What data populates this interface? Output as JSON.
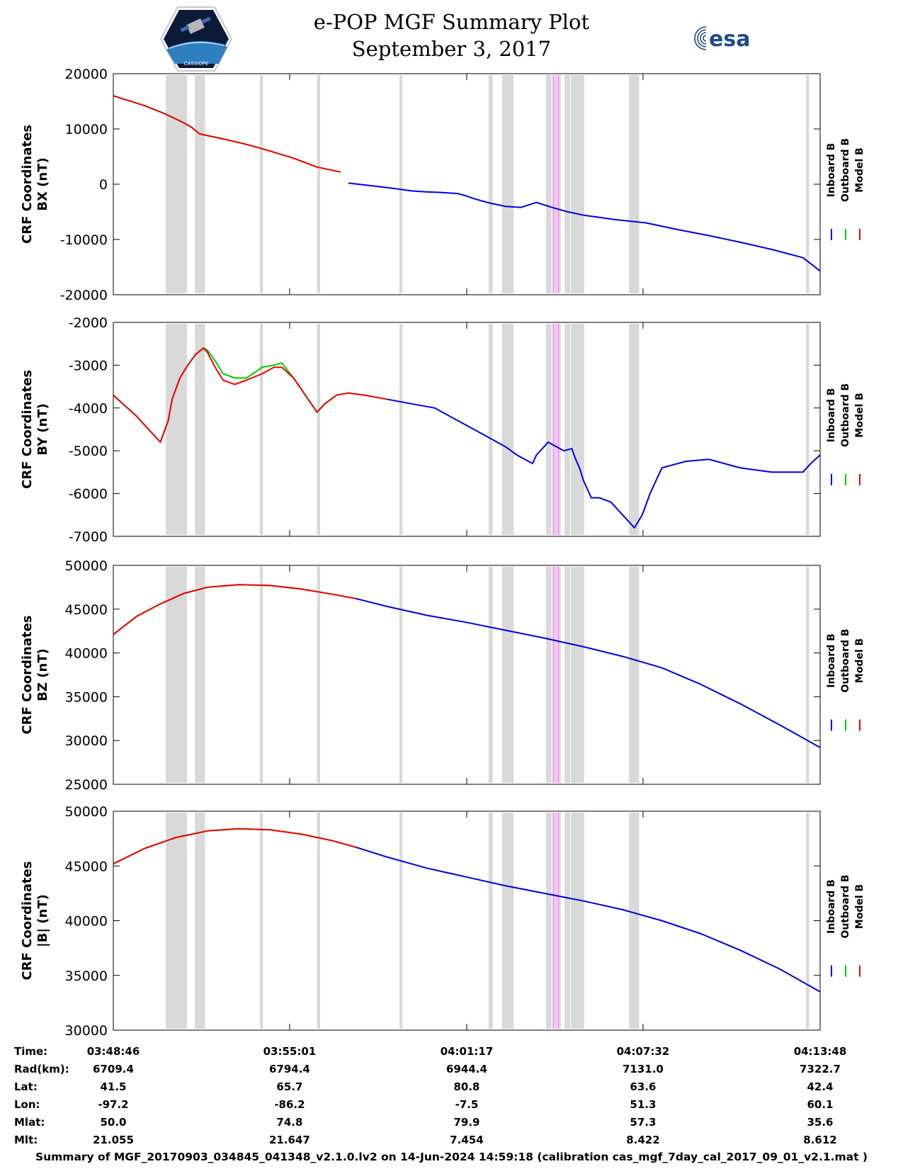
{
  "header": {
    "title": "e-POP MGF Summary Plot",
    "date": "September 3, 2017",
    "logo_left_caption": "CASSIOPE",
    "logo_right_text": "esa"
  },
  "footer": "Summary of MGF_20170903_034845_041348_v2.1.0.lv2 on 14-Jun-2024 14:59:18 (calibration cas_mgf_7day_cal_2017_09_01_v2.1.mat )",
  "colors": {
    "inboard": "#0000dd",
    "outboard": "#00cc00",
    "model": "#ee0000",
    "gap": "#d9d9d9",
    "highlight": "#f4c8f4"
  },
  "legend": [
    "Inboard B",
    "Outboard B",
    "Model B"
  ],
  "chart_data": [
    {
      "type": "line",
      "ylabel": [
        "CRF Coordinates",
        "BX (nT)"
      ],
      "ylim": [
        -20000,
        20000
      ],
      "yticks": [
        20000,
        10000,
        0,
        -10000,
        -20000
      ],
      "x_unit": "seconds since 03:48:46",
      "series": [
        {
          "name": "Outboard B",
          "x": [
            0,
            40,
            65,
            80,
            90,
            100,
            110,
            140,
            170,
            200,
            230,
            260,
            290
          ],
          "values": [
            16000,
            14200,
            12800,
            11800,
            11100,
            10300,
            9100,
            8200,
            7200,
            6000,
            4700,
            3100,
            2200
          ]
        },
        {
          "name": "Model B",
          "x": [
            0,
            40,
            65,
            80,
            90,
            100,
            110,
            140,
            170,
            200,
            230,
            260,
            290
          ],
          "values": [
            16000,
            14200,
            12800,
            11800,
            11100,
            10300,
            9100,
            8200,
            7200,
            6000,
            4700,
            3100,
            2200
          ]
        },
        {
          "name": "Inboard B",
          "x": [
            300,
            330,
            360,
            380,
            400,
            420,
            430,
            440,
            450,
            460,
            465,
            470,
            480,
            500,
            520,
            540,
            560,
            580,
            600,
            640,
            680,
            720,
            760,
            800,
            840,
            880,
            902
          ],
          "values": [
            200,
            -300,
            -800,
            -1200,
            -1400,
            -1500,
            -1600,
            -1700,
            -2100,
            -2600,
            -2800,
            -3000,
            -3400,
            -4000,
            -4200,
            -3300,
            -4200,
            -5000,
            -5600,
            -6400,
            -7000,
            -8200,
            -9300,
            -10500,
            -11800,
            -13300,
            -15700
          ]
        }
      ]
    },
    {
      "type": "line",
      "ylabel": [
        "CRF Coordinates",
        "BY (nT)"
      ],
      "ylim": [
        -7000,
        -2000
      ],
      "yticks": [
        -2000,
        -3000,
        -4000,
        -5000,
        -6000,
        -7000
      ],
      "x_unit": "seconds since 03:48:46",
      "series": [
        {
          "name": "Outboard B",
          "x": [
            0,
            30,
            60,
            70,
            75,
            85,
            95,
            105,
            115,
            120,
            130,
            140,
            155,
            170,
            190,
            205,
            215,
            230,
            245,
            260,
            270,
            285,
            300,
            320,
            350
          ],
          "values": [
            -3700,
            -4200,
            -4800,
            -4300,
            -3800,
            -3300,
            -3000,
            -2750,
            -2600,
            -2650,
            -2900,
            -3200,
            -3300,
            -3300,
            -3050,
            -3000,
            -2950,
            -3300,
            -3700,
            -4100,
            -3900,
            -3700,
            -3650,
            -3700,
            -3800
          ]
        },
        {
          "name": "Model B",
          "x": [
            0,
            30,
            60,
            70,
            75,
            85,
            95,
            105,
            115,
            120,
            130,
            140,
            155,
            170,
            190,
            205,
            215,
            230,
            245,
            260,
            270,
            285,
            300,
            320,
            350
          ],
          "values": [
            -3700,
            -4200,
            -4800,
            -4300,
            -3800,
            -3300,
            -3000,
            -2750,
            -2600,
            -2700,
            -3050,
            -3350,
            -3450,
            -3350,
            -3200,
            -3050,
            -3050,
            -3300,
            -3700,
            -4100,
            -3900,
            -3700,
            -3650,
            -3700,
            -3800
          ]
        },
        {
          "name": "Inboard B",
          "x": [
            350,
            380,
            410,
            440,
            470,
            500,
            515,
            525,
            535,
            540,
            545,
            555,
            565,
            575,
            585,
            590,
            595,
            600,
            610,
            620,
            635,
            645,
            655,
            665,
            675,
            685,
            700,
            730,
            760,
            800,
            840,
            880,
            890,
            902
          ],
          "values": [
            -3800,
            -3900,
            -4000,
            -4300,
            -4600,
            -4900,
            -5100,
            -5200,
            -5300,
            -5100,
            -5000,
            -4800,
            -4900,
            -5000,
            -4950,
            -5200,
            -5400,
            -5700,
            -6100,
            -6100,
            -6200,
            -6400,
            -6600,
            -6800,
            -6500,
            -6000,
            -5400,
            -5250,
            -5200,
            -5400,
            -5500,
            -5500,
            -5300,
            -5100
          ]
        }
      ]
    },
    {
      "type": "line",
      "ylabel": [
        "CRF Coordinates",
        "BZ (nT)"
      ],
      "ylim": [
        25000,
        50000
      ],
      "yticks": [
        50000,
        45000,
        40000,
        35000,
        30000,
        25000
      ],
      "x_unit": "seconds since 03:48:46",
      "series": [
        {
          "name": "Outboard B",
          "x": [
            0,
            30,
            60,
            90,
            120,
            160,
            200,
            240,
            280,
            310
          ],
          "values": [
            42100,
            44200,
            45600,
            46800,
            47500,
            47800,
            47700,
            47300,
            46700,
            46200
          ]
        },
        {
          "name": "Model B",
          "x": [
            0,
            30,
            60,
            90,
            120,
            160,
            200,
            240,
            280,
            310
          ],
          "values": [
            42100,
            44200,
            45600,
            46800,
            47500,
            47800,
            47700,
            47300,
            46700,
            46200
          ]
        },
        {
          "name": "Inboard B",
          "x": [
            310,
            350,
            400,
            450,
            500,
            550,
            600,
            650,
            700,
            750,
            800,
            850,
            902
          ],
          "values": [
            46200,
            45300,
            44300,
            43500,
            42600,
            41700,
            40700,
            39600,
            38300,
            36400,
            34200,
            31800,
            29200
          ]
        }
      ]
    },
    {
      "type": "line",
      "ylabel": [
        "CRF Coordinates",
        "|B| (nT)"
      ],
      "ylim": [
        30000,
        50000
      ],
      "yticks": [
        50000,
        45000,
        40000,
        35000,
        30000
      ],
      "x_unit": "seconds since 03:48:46",
      "series": [
        {
          "name": "Outboard B",
          "x": [
            0,
            40,
            80,
            120,
            160,
            200,
            240,
            280,
            310
          ],
          "values": [
            45200,
            46600,
            47600,
            48200,
            48400,
            48300,
            47900,
            47300,
            46700
          ]
        },
        {
          "name": "Model B",
          "x": [
            0,
            40,
            80,
            120,
            160,
            200,
            240,
            280,
            310
          ],
          "values": [
            45200,
            46600,
            47600,
            48200,
            48400,
            48300,
            47900,
            47300,
            46700
          ]
        },
        {
          "name": "Inboard B",
          "x": [
            310,
            350,
            400,
            450,
            500,
            550,
            600,
            650,
            700,
            750,
            800,
            850,
            902
          ],
          "values": [
            46700,
            45800,
            44800,
            44000,
            43200,
            42500,
            41800,
            41000,
            40000,
            38800,
            37300,
            35600,
            33500
          ]
        }
      ]
    }
  ],
  "x_axis": {
    "range_seconds": [
      0,
      902
    ],
    "tick_seconds": [
      0,
      225,
      451,
      676,
      902
    ],
    "gap_intervals_seconds": [
      [
        67,
        94
      ],
      [
        104,
        117
      ],
      [
        187,
        191
      ],
      [
        260,
        264
      ],
      [
        365,
        369
      ],
      [
        479,
        484
      ],
      [
        496,
        511
      ],
      [
        552,
        559
      ],
      [
        561,
        571
      ],
      [
        576,
        583
      ],
      [
        584,
        601
      ],
      [
        658,
        671
      ],
      [
        884,
        888
      ]
    ],
    "highlight_intervals_seconds": [
      [
        560,
        570
      ]
    ]
  },
  "info_table": {
    "labels": [
      "Time:",
      "Rad(km):",
      "Lat:",
      "Lon:",
      "Mlat:",
      "Mlt:"
    ],
    "columns": [
      [
        "03:48:46",
        "6709.4",
        "41.5",
        "-97.2",
        "50.0",
        "21.055"
      ],
      [
        "03:55:01",
        "6794.4",
        "65.7",
        "-86.2",
        "74.8",
        "21.647"
      ],
      [
        "04:01:17",
        "6944.4",
        "80.8",
        "-7.5",
        "79.9",
        "7.454"
      ],
      [
        "04:07:32",
        "7131.0",
        "63.6",
        "51.3",
        "57.3",
        "8.422"
      ],
      [
        "04:13:48",
        "7322.7",
        "42.4",
        "60.1",
        "35.6",
        "8.612"
      ]
    ]
  }
}
